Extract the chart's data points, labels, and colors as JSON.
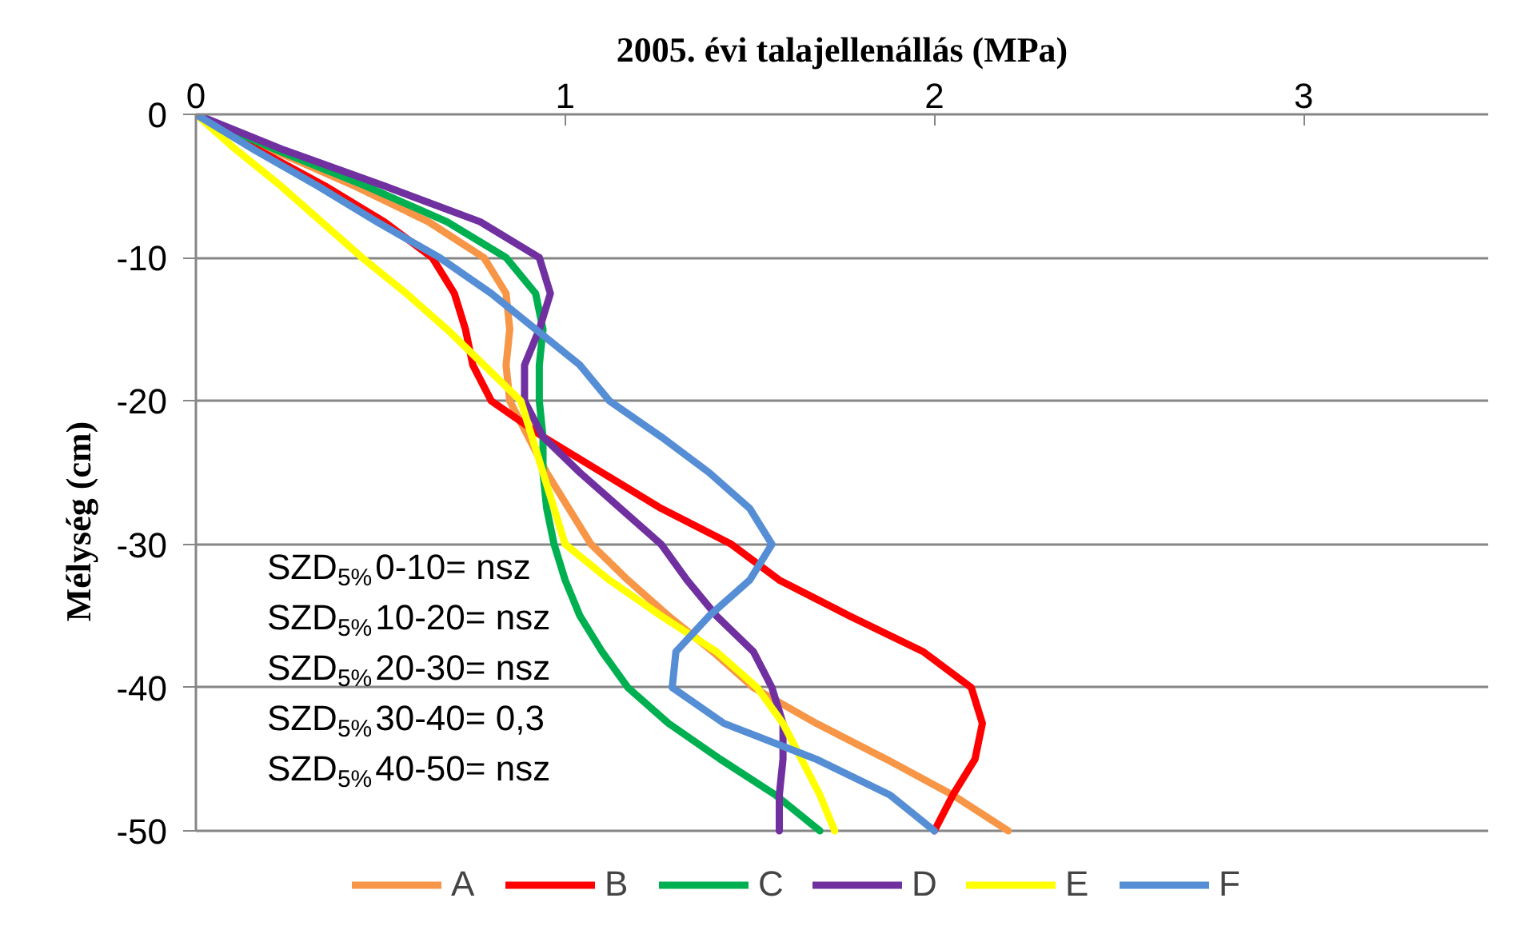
{
  "chart_data": {
    "type": "line",
    "title": "2005. évi talajellenállás (MPa)",
    "ylabel": "Mélység (cm)",
    "xlim": [
      0,
      3.5
    ],
    "xticks": [
      0,
      1,
      2,
      3
    ],
    "ylim": [
      -50,
      0
    ],
    "yticks": [
      -50,
      -40,
      -30,
      -20,
      -10,
      0
    ],
    "grid": "y",
    "legend": "bottom",
    "marker": "none",
    "line_style": "solid",
    "annotations": [
      "SZD$_{5%}$0-10= nsz",
      "SZD$_{5%}$10-20= nsz",
      "SZD$_{5%}$20-30= nsz",
      "SZD$_{5%}$30-40= 0,3",
      "SZD$_{5%}$40-50= nsz"
    ],
    "series": [
      {
        "name": "A",
        "color": "#f79646",
        "x": [
          0,
          0.21,
          0.43,
          0.63,
          0.78,
          0.84,
          0.85,
          0.84,
          0.85,
          0.9,
          0.95,
          1.01,
          1.07,
          1.17,
          1.28,
          1.4,
          1.51,
          1.68,
          1.87,
          2.05,
          2.2
        ],
        "values": [
          0,
          -2.5,
          -5,
          -7.5,
          -10,
          -12.5,
          -15,
          -17.5,
          -20,
          -22.5,
          -25,
          -27.5,
          -30,
          -32.5,
          -35,
          -37.5,
          -40,
          -42.5,
          -45,
          -47.5,
          -50
        ]
      },
      {
        "name": "B",
        "color": "#ff0000",
        "x": [
          0,
          0.17,
          0.35,
          0.51,
          0.64,
          0.7,
          0.73,
          0.75,
          0.8,
          0.94,
          1.1,
          1.26,
          1.45,
          1.58,
          1.77,
          1.97,
          2.1,
          2.13,
          2.11,
          2.05,
          2.0
        ],
        "values": [
          0,
          -2.5,
          -5,
          -7.5,
          -10,
          -12.5,
          -15,
          -17.5,
          -20,
          -22.5,
          -25,
          -27.5,
          -30,
          -32.5,
          -35,
          -37.5,
          -40,
          -42.5,
          -45,
          -47.5,
          -50
        ]
      },
      {
        "name": "C",
        "color": "#00b050",
        "x": [
          0,
          0.22,
          0.46,
          0.68,
          0.84,
          0.92,
          0.94,
          0.93,
          0.93,
          0.94,
          0.94,
          0.95,
          0.97,
          1.0,
          1.04,
          1.1,
          1.17,
          1.28,
          1.42,
          1.57,
          1.69
        ],
        "values": [
          0,
          -2.5,
          -5,
          -7.5,
          -10,
          -12.5,
          -15,
          -17.5,
          -20,
          -22.5,
          -25,
          -27.5,
          -30,
          -32.5,
          -35,
          -37.5,
          -40,
          -42.5,
          -45,
          -47.5,
          -50
        ]
      },
      {
        "name": "D",
        "color": "#7030a0",
        "x": [
          0,
          0.24,
          0.51,
          0.77,
          0.93,
          0.96,
          0.93,
          0.89,
          0.89,
          0.94,
          1.04,
          1.15,
          1.26,
          1.33,
          1.41,
          1.51,
          1.56,
          1.59,
          1.59,
          1.58,
          1.58
        ],
        "values": [
          0,
          -2.5,
          -5,
          -7.5,
          -10,
          -12.5,
          -15,
          -17.5,
          -20,
          -22.5,
          -25,
          -27.5,
          -30,
          -32.5,
          -35,
          -37.5,
          -40,
          -42.5,
          -45,
          -47.5,
          -50
        ]
      },
      {
        "name": "E",
        "color": "#ffff00",
        "x": [
          0,
          0.11,
          0.23,
          0.34,
          0.45,
          0.57,
          0.68,
          0.78,
          0.88,
          0.91,
          0.94,
          0.97,
          1.0,
          1.12,
          1.26,
          1.41,
          1.52,
          1.59,
          1.64,
          1.69,
          1.73
        ],
        "values": [
          0,
          -2.5,
          -5,
          -7.5,
          -10,
          -12.5,
          -15,
          -17.5,
          -20,
          -22.5,
          -25,
          -27.5,
          -30,
          -32.5,
          -35,
          -37.5,
          -40,
          -42.5,
          -45,
          -47.5,
          -50
        ]
      },
      {
        "name": "F",
        "color": "#558ed5",
        "x": [
          0,
          0.16,
          0.33,
          0.49,
          0.66,
          0.8,
          0.92,
          1.04,
          1.12,
          1.26,
          1.39,
          1.5,
          1.56,
          1.5,
          1.39,
          1.3,
          1.29,
          1.43,
          1.68,
          1.88,
          2.0
        ],
        "values": [
          0,
          -2.5,
          -5,
          -7.5,
          -10,
          -12.5,
          -15,
          -17.5,
          -20,
          -22.5,
          -25,
          -27.5,
          -30,
          -32.5,
          -35,
          -37.5,
          -40,
          -42.5,
          -45,
          -47.5,
          -50
        ]
      }
    ]
  }
}
